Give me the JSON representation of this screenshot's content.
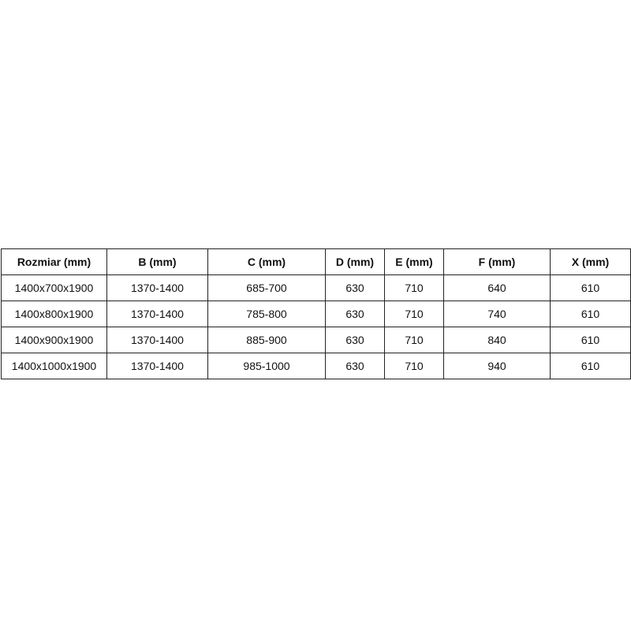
{
  "table": {
    "headers": [
      "Rozmiar (mm)",
      "B (mm)",
      "C (mm)",
      "D (mm)",
      "E (mm)",
      "F (mm)",
      "X (mm)"
    ],
    "rows": [
      [
        "1400x700x1900",
        "1370-1400",
        "685-700",
        "630",
        "710",
        "640",
        "610"
      ],
      [
        "1400x800x1900",
        "1370-1400",
        "785-800",
        "630",
        "710",
        "740",
        "610"
      ],
      [
        "1400x900x1900",
        "1370-1400",
        "885-900",
        "630",
        "710",
        "840",
        "610"
      ],
      [
        "1400x1000x1900",
        "1370-1400",
        "985-1000",
        "630",
        "710",
        "940",
        "610"
      ]
    ]
  }
}
